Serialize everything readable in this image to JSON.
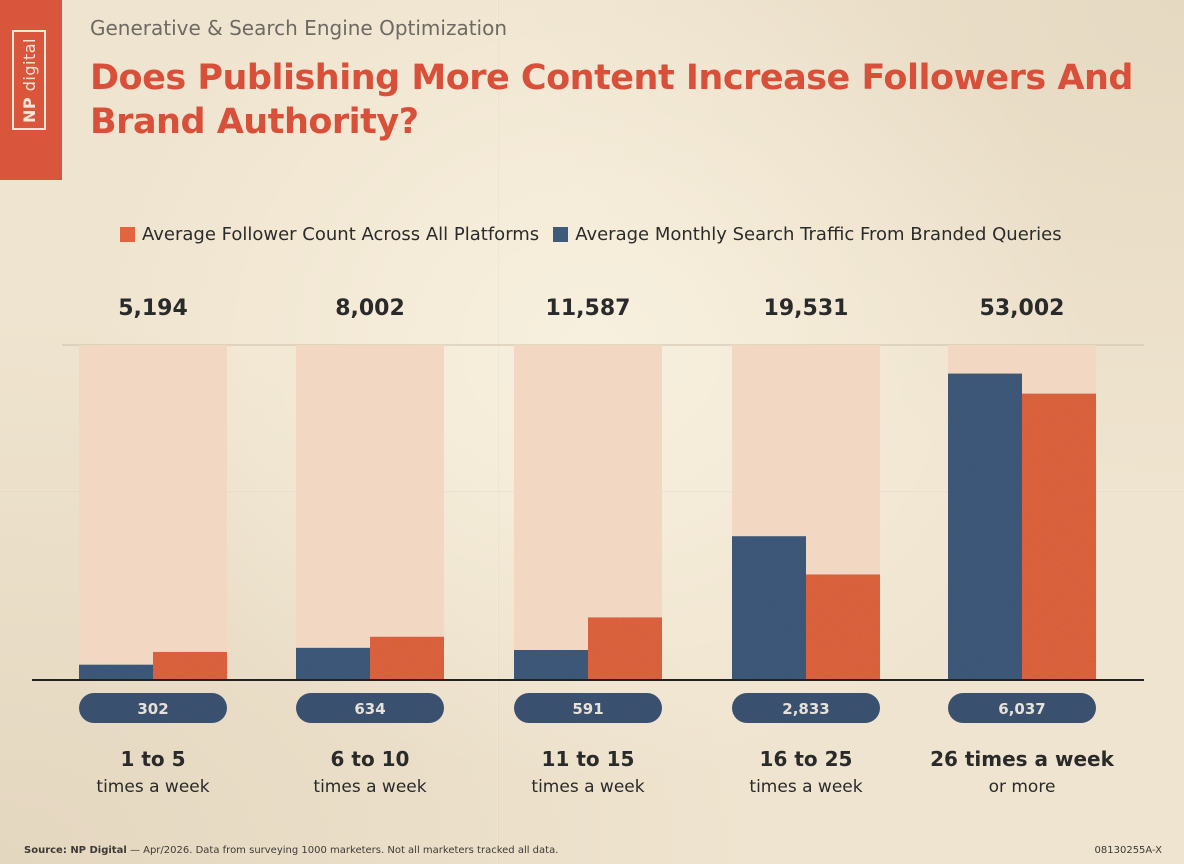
{
  "brand": {
    "np": "NP",
    "name": "digital"
  },
  "header": {
    "subtitle": "Generative & Search Engine Optimization",
    "title": "Does Publishing More Content Increase Followers And Brand Authority?"
  },
  "footer": {
    "source_label": "Source: NP Digital",
    "source_text": " — Apr/2026. Data from surveying 1000 marketers. Not all marketers tracked all data.",
    "code": "08130255A-X"
  },
  "colors": {
    "accent": "#d8503a",
    "followers": "#e2653f",
    "search": "#3f5b7c",
    "background_band": "#f2d8c2",
    "pill": "#3c5473"
  },
  "chart_data": {
    "type": "bar",
    "categories": [
      [
        "1 to 5",
        "times a week"
      ],
      [
        "6 to 10",
        "times a week"
      ],
      [
        "11 to 15",
        "times a week"
      ],
      [
        "16 to 25",
        "times a week"
      ],
      [
        "26 times a week",
        "or more"
      ]
    ],
    "series": [
      {
        "name": "Average Follower Count Across All Platforms",
        "values": [
          5194,
          8002,
          11587,
          19531,
          53002
        ],
        "labels": [
          "5,194",
          "8,002",
          "11,587",
          "19,531",
          "53,002"
        ]
      },
      {
        "name": "Average Monthly Search Traffic From Branded Queries",
        "values": [
          302,
          634,
          591,
          2833,
          6037
        ],
        "labels": [
          "302",
          "634",
          "591",
          "2,833",
          "6,037"
        ]
      }
    ],
    "legend": "top-center",
    "grid": false
  }
}
